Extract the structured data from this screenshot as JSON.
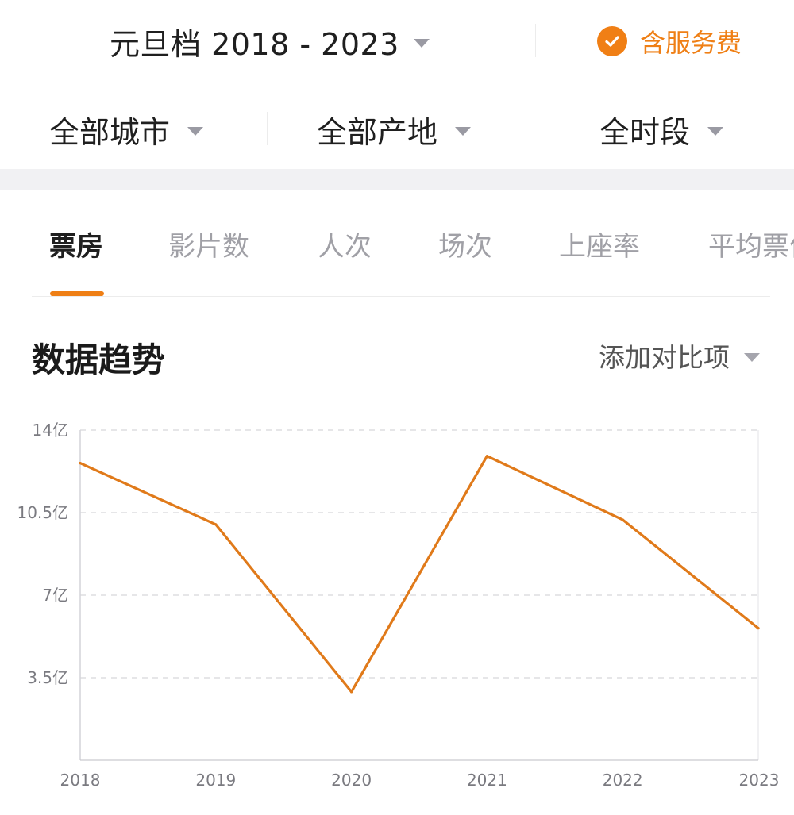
{
  "header": {
    "period_label": "元旦档 2018 - 2023",
    "service_label": "含服务费",
    "accent_color": "#ef7f15"
  },
  "filters": [
    {
      "label": "全部城市"
    },
    {
      "label": "全部产地"
    },
    {
      "label": "全时段"
    }
  ],
  "tabs": [
    {
      "label": "票房",
      "active": true
    },
    {
      "label": "影片数",
      "active": false
    },
    {
      "label": "人次",
      "active": false
    },
    {
      "label": "场次",
      "active": false
    },
    {
      "label": "上座率",
      "active": false
    },
    {
      "label": "平均票价",
      "active": false
    }
  ],
  "section": {
    "title": "数据趋势",
    "compare_label": "添加对比项"
  },
  "chart_data": {
    "type": "line",
    "x": [
      "2018",
      "2019",
      "2020",
      "2021",
      "2022",
      "2023"
    ],
    "series": [
      {
        "values": [
          12.6,
          10.0,
          2.9,
          12.9,
          10.2,
          5.6
        ],
        "color": "#e07a1a"
      }
    ],
    "ylim": [
      0,
      14
    ],
    "yticks": [
      {
        "value": 14,
        "label": "14亿"
      },
      {
        "value": 10.5,
        "label": "10.5亿"
      },
      {
        "value": 7,
        "label": "7亿"
      },
      {
        "value": 3.5,
        "label": "3.5亿"
      }
    ],
    "grid": true,
    "grid_style": "dashed horizontal"
  }
}
